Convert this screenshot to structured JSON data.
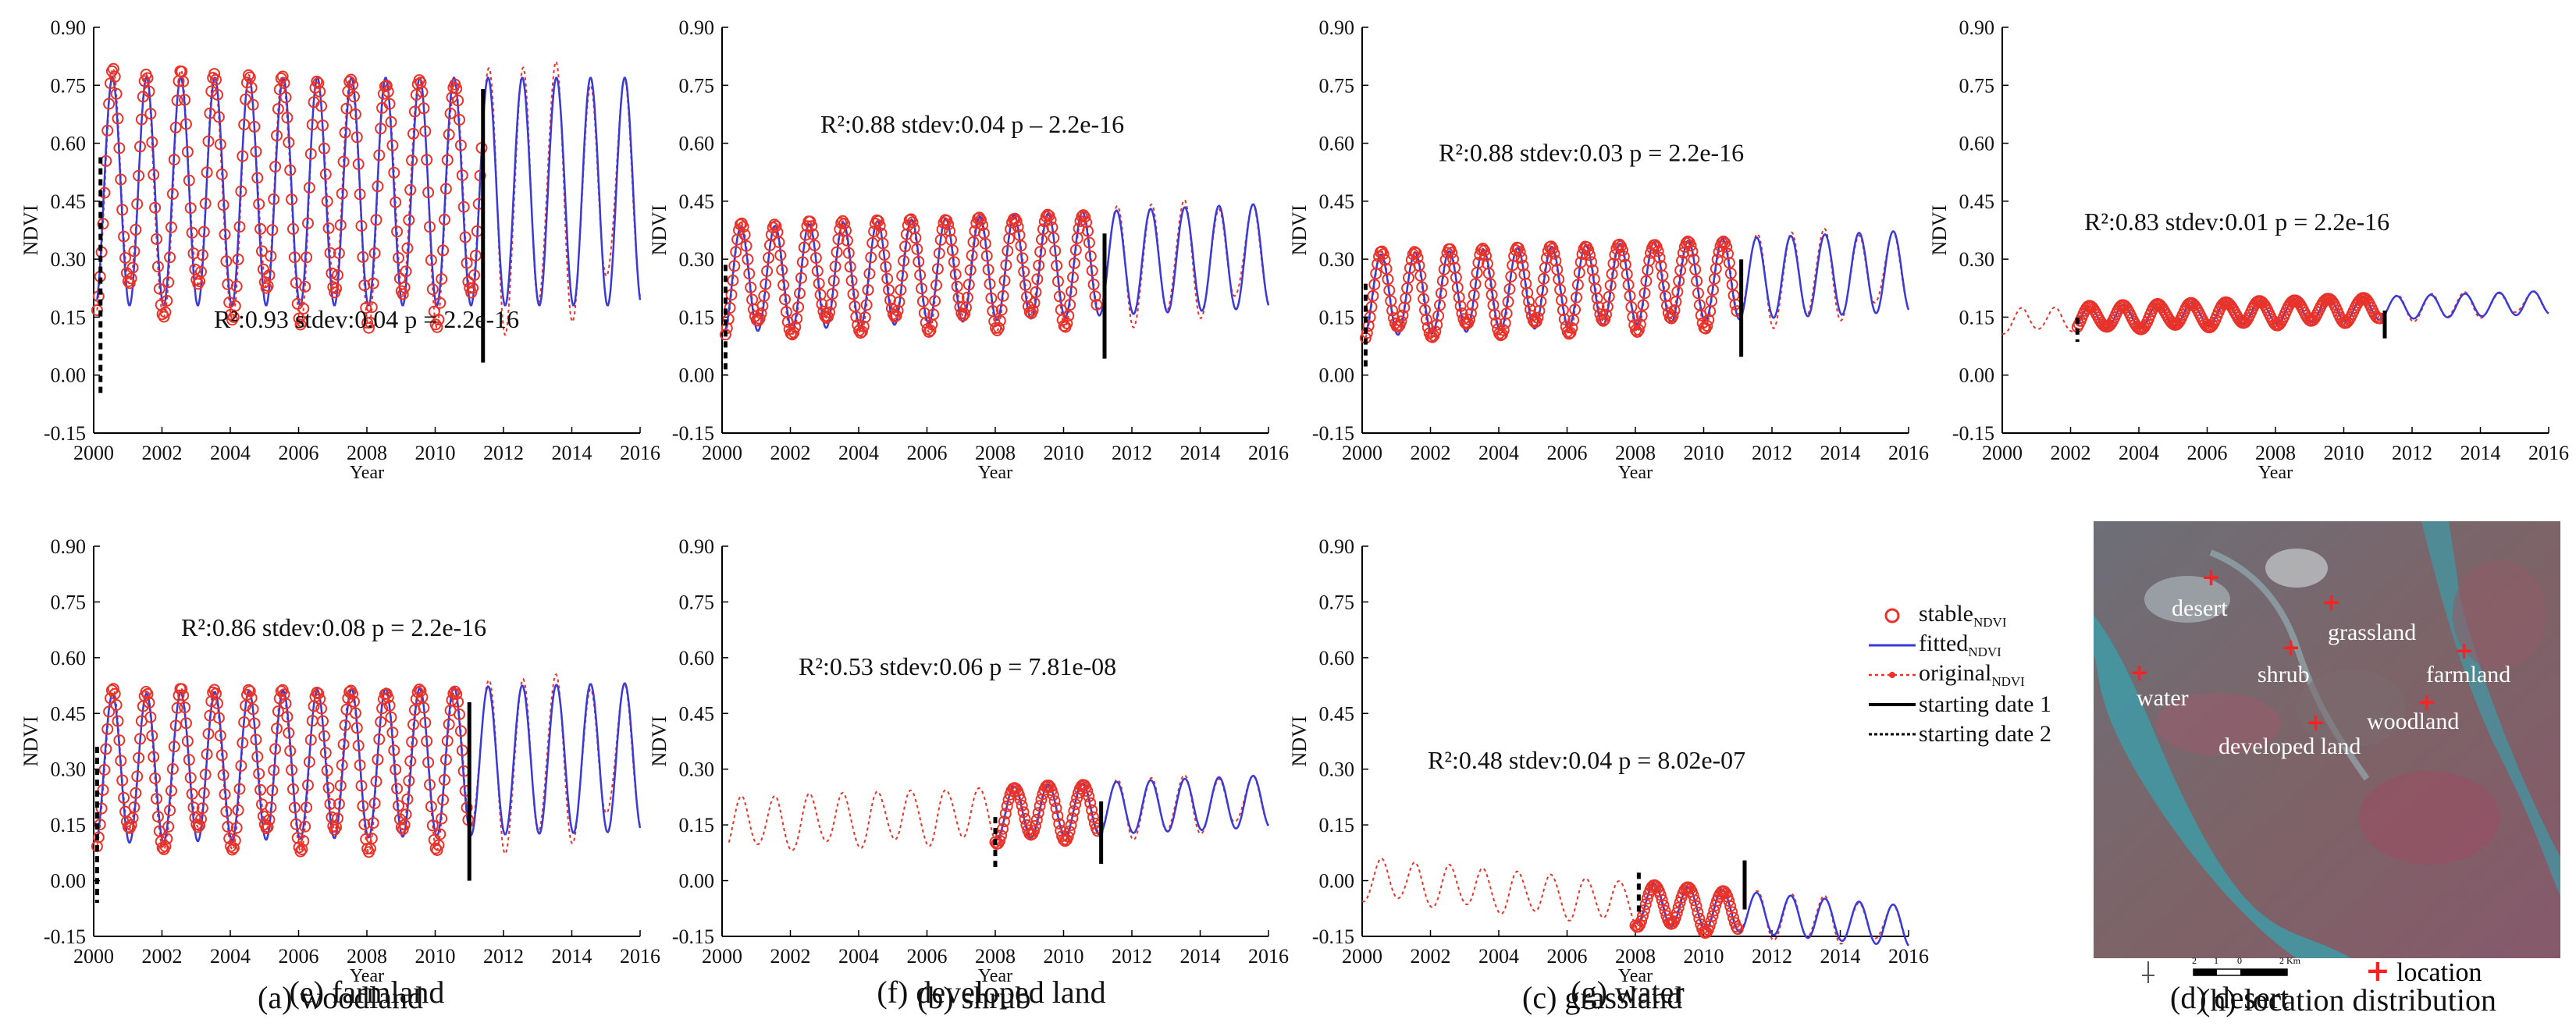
{
  "figure": {
    "panels": [
      {
        "id": "a",
        "caption": "(a) woodland",
        "annotation": "R²:0.93 stdev:0.04 p = 2.2e-16",
        "xlabel": "Year",
        "ylabel": "NDVI"
      },
      {
        "id": "b",
        "caption": "(b) shrub",
        "annotation": "R²:0.88 stdev:0.04 p – 2.2e-16",
        "xlabel": "Year",
        "ylabel": "NDVI"
      },
      {
        "id": "c",
        "caption": "(c) grassland",
        "annotation": "R²:0.88 stdev:0.03 p = 2.2e-16",
        "xlabel": "Year",
        "ylabel": "NDVI"
      },
      {
        "id": "d",
        "caption": "(d) desert",
        "annotation": "R²:0.83 stdev:0.01 p = 2.2e-16",
        "xlabel": "Year",
        "ylabel": "NDVI"
      },
      {
        "id": "e",
        "caption": "(e) farmland",
        "annotation": "R²:0.86 stdev:0.08 p = 2.2e-16",
        "xlabel": "Year",
        "ylabel": "NDVI"
      },
      {
        "id": "f",
        "caption": "(f) developed land",
        "annotation": "R²:0.53 stdev:0.06 p = 7.81e-08",
        "xlabel": "Year",
        "ylabel": "NDVI"
      },
      {
        "id": "g",
        "caption": "(g) water",
        "annotation": "R²:0.48 stdev:0.04 p = 8.02e-07",
        "xlabel": "Year",
        "ylabel": "NDVI"
      }
    ],
    "map_caption": "(h) location distribution",
    "map_labels": [
      "desert",
      "grassland",
      "shrub",
      "farmland",
      "water",
      "woodland",
      "developed land"
    ],
    "map_legend": "location",
    "scale_ticks": [
      "2",
      "1",
      "0",
      "2 Km"
    ],
    "legend": {
      "stable": {
        "main": "stable",
        "sub": "NDVI"
      },
      "fitted": {
        "main": "fitted",
        "sub": "NDVI"
      },
      "original": {
        "main": "original",
        "sub": "NDVI"
      },
      "start1": "starting date 1",
      "start2": "starting date 2"
    },
    "colors": {
      "stable": "#e8332a",
      "fitted": "#3a3ad8",
      "original": "#e8332a",
      "start": "#000000"
    }
  },
  "chart_data": [
    {
      "type": "line",
      "id": "a",
      "title": "(a) woodland",
      "xlabel": "Year",
      "ylabel": "NDVI",
      "xlim": [
        2000,
        2016
      ],
      "ylim": [
        -0.15,
        0.9
      ],
      "xticks": [
        "2000",
        "2002",
        "2004",
        "2006",
        "2008",
        "2010",
        "2012",
        "2014",
        "2016"
      ],
      "yticks": [
        "-0.15",
        "0.00",
        "0.15",
        "0.30",
        "0.45",
        "0.60",
        "0.75",
        "0.90"
      ],
      "annotation": "R²:0.93 stdev:0.04 p = 2.2e-16",
      "series_model": {
        "min": 0.18,
        "max": 0.77,
        "trend": 0.0,
        "stable_span": [
          2000.1,
          2011.4
        ],
        "fitted_span": [
          2000.1,
          2016
        ],
        "original_span": [
          2000.1,
          2016
        ]
      },
      "start_date_1": 2011.4,
      "start_date_2": 2000.2
    },
    {
      "type": "line",
      "id": "b",
      "title": "(b) shrub",
      "xlabel": "Year",
      "ylabel": "NDVI",
      "xlim": [
        2000,
        2016
      ],
      "ylim": [
        -0.15,
        0.9
      ],
      "xticks": [
        "2000",
        "2002",
        "2004",
        "2006",
        "2008",
        "2010",
        "2012",
        "2014",
        "2016"
      ],
      "yticks": [
        "-0.15",
        "0.00",
        "0.15",
        "0.30",
        "0.45",
        "0.60",
        "0.75",
        "0.90"
      ],
      "annotation": "R²:0.88 stdev:0.04 p – 2.2e-16",
      "series_model": {
        "min": 0.11,
        "max": 0.38,
        "trend": 0.004,
        "stable_span": [
          2000.1,
          2011
        ],
        "fitted_span": [
          2000.1,
          2016
        ],
        "original_span": [
          2000.1,
          2016
        ]
      },
      "start_date_1": 2011.2,
      "start_date_2": 2000.1
    },
    {
      "type": "line",
      "id": "c",
      "title": "(c) grassland",
      "xlabel": "Year",
      "ylabel": "NDVI",
      "xlim": [
        2000,
        2016
      ],
      "ylim": [
        -0.15,
        0.9
      ],
      "xticks": [
        "2000",
        "2002",
        "2004",
        "2006",
        "2008",
        "2010",
        "2012",
        "2014",
        "2016"
      ],
      "yticks": [
        "-0.15",
        "0.00",
        "0.15",
        "0.30",
        "0.45",
        "0.60",
        "0.75",
        "0.90"
      ],
      "annotation": "R²:0.88 stdev:0.03 p = 2.2e-16",
      "series_model": {
        "min": 0.1,
        "max": 0.31,
        "trend": 0.004,
        "stable_span": [
          2000.1,
          2011
        ],
        "fitted_span": [
          2000.1,
          2016
        ],
        "original_span": [
          2000.1,
          2016
        ]
      },
      "start_date_1": 2011.1,
      "start_date_2": 2000.1
    },
    {
      "type": "line",
      "id": "d",
      "title": "(d) desert",
      "xlabel": "Year",
      "ylabel": "NDVI",
      "xlim": [
        2000,
        2016
      ],
      "ylim": [
        -0.15,
        0.9
      ],
      "xticks": [
        "2000",
        "2002",
        "2004",
        "2006",
        "2008",
        "2010",
        "2012",
        "2014",
        "2016"
      ],
      "yticks": [
        "-0.15",
        "0.00",
        "0.15",
        "0.30",
        "0.45",
        "0.60",
        "0.75",
        "0.90"
      ],
      "annotation": "R²:0.83 stdev:0.01 p = 2.2e-16",
      "series_model": {
        "min": 0.11,
        "max": 0.17,
        "trend": 0.003,
        "stable_span": [
          2002.2,
          2011.1
        ],
        "fitted_span": [
          2002.2,
          2016
        ],
        "original_span": [
          2000,
          2016
        ]
      },
      "start_date_1": 2011.2,
      "start_date_2": 2002.2
    },
    {
      "type": "line",
      "id": "e",
      "title": "(e) farmland",
      "xlabel": "Year",
      "ylabel": "NDVI",
      "xlim": [
        2000,
        2016
      ],
      "ylim": [
        -0.15,
        0.9
      ],
      "xticks": [
        "2000",
        "2002",
        "2004",
        "2006",
        "2008",
        "2010",
        "2012",
        "2014",
        "2016"
      ],
      "yticks": [
        "-0.15",
        "0.00",
        "0.15",
        "0.30",
        "0.45",
        "0.60",
        "0.75",
        "0.90"
      ],
      "annotation": "R²:0.86 stdev:0.08 p = 2.2e-16",
      "series_model": {
        "min": 0.1,
        "max": 0.5,
        "trend": 0.002,
        "stable_span": [
          2000.1,
          2011
        ],
        "fitted_span": [
          2000.1,
          2016
        ],
        "original_span": [
          2000.1,
          2016
        ]
      },
      "start_date_1": 2011,
      "start_date_2": 2000.1
    },
    {
      "type": "line",
      "id": "f",
      "title": "(f) developed land",
      "xlabel": "Year",
      "ylabel": "NDVI",
      "xlim": [
        2000,
        2016
      ],
      "ylim": [
        -0.15,
        0.9
      ],
      "xticks": [
        "2000",
        "2002",
        "2004",
        "2006",
        "2008",
        "2010",
        "2012",
        "2014",
        "2016"
      ],
      "yticks": [
        "-0.15",
        "0.00",
        "0.15",
        "0.30",
        "0.45",
        "0.60",
        "0.75",
        "0.90"
      ],
      "annotation": "R²:0.53 stdev:0.06 p = 7.81e-08",
      "series_model": {
        "min": 0.08,
        "max": 0.22,
        "trend": 0.004,
        "stable_span": [
          2008,
          2011
        ],
        "fitted_span": [
          2008,
          2016
        ],
        "original_span": [
          2000.2,
          2016
        ]
      },
      "start_date_1": 2011.1,
      "start_date_2": 2008
    },
    {
      "type": "line",
      "id": "g",
      "title": "(g) water",
      "xlabel": "Year",
      "ylabel": "NDVI",
      "xlim": [
        2000,
        2016
      ],
      "ylim": [
        -0.15,
        0.9
      ],
      "xticks": [
        "2000",
        "2002",
        "2004",
        "2006",
        "2008",
        "2010",
        "2012",
        "2014",
        "2016"
      ],
      "yticks": [
        "-0.15",
        "0.00",
        "0.15",
        "0.30",
        "0.45",
        "0.60",
        "0.75",
        "0.90"
      ],
      "annotation": "R²:0.48 stdev:0.04 p = 8.02e-07",
      "series_model": {
        "min": -0.05,
        "max": 0.06,
        "trend": -0.008,
        "stable_span": [
          2008,
          2011
        ],
        "fitted_span": [
          2008,
          2016
        ],
        "original_span": [
          2000,
          2016
        ]
      },
      "start_date_1": 2011.2,
      "start_date_2": 2008.1
    }
  ]
}
